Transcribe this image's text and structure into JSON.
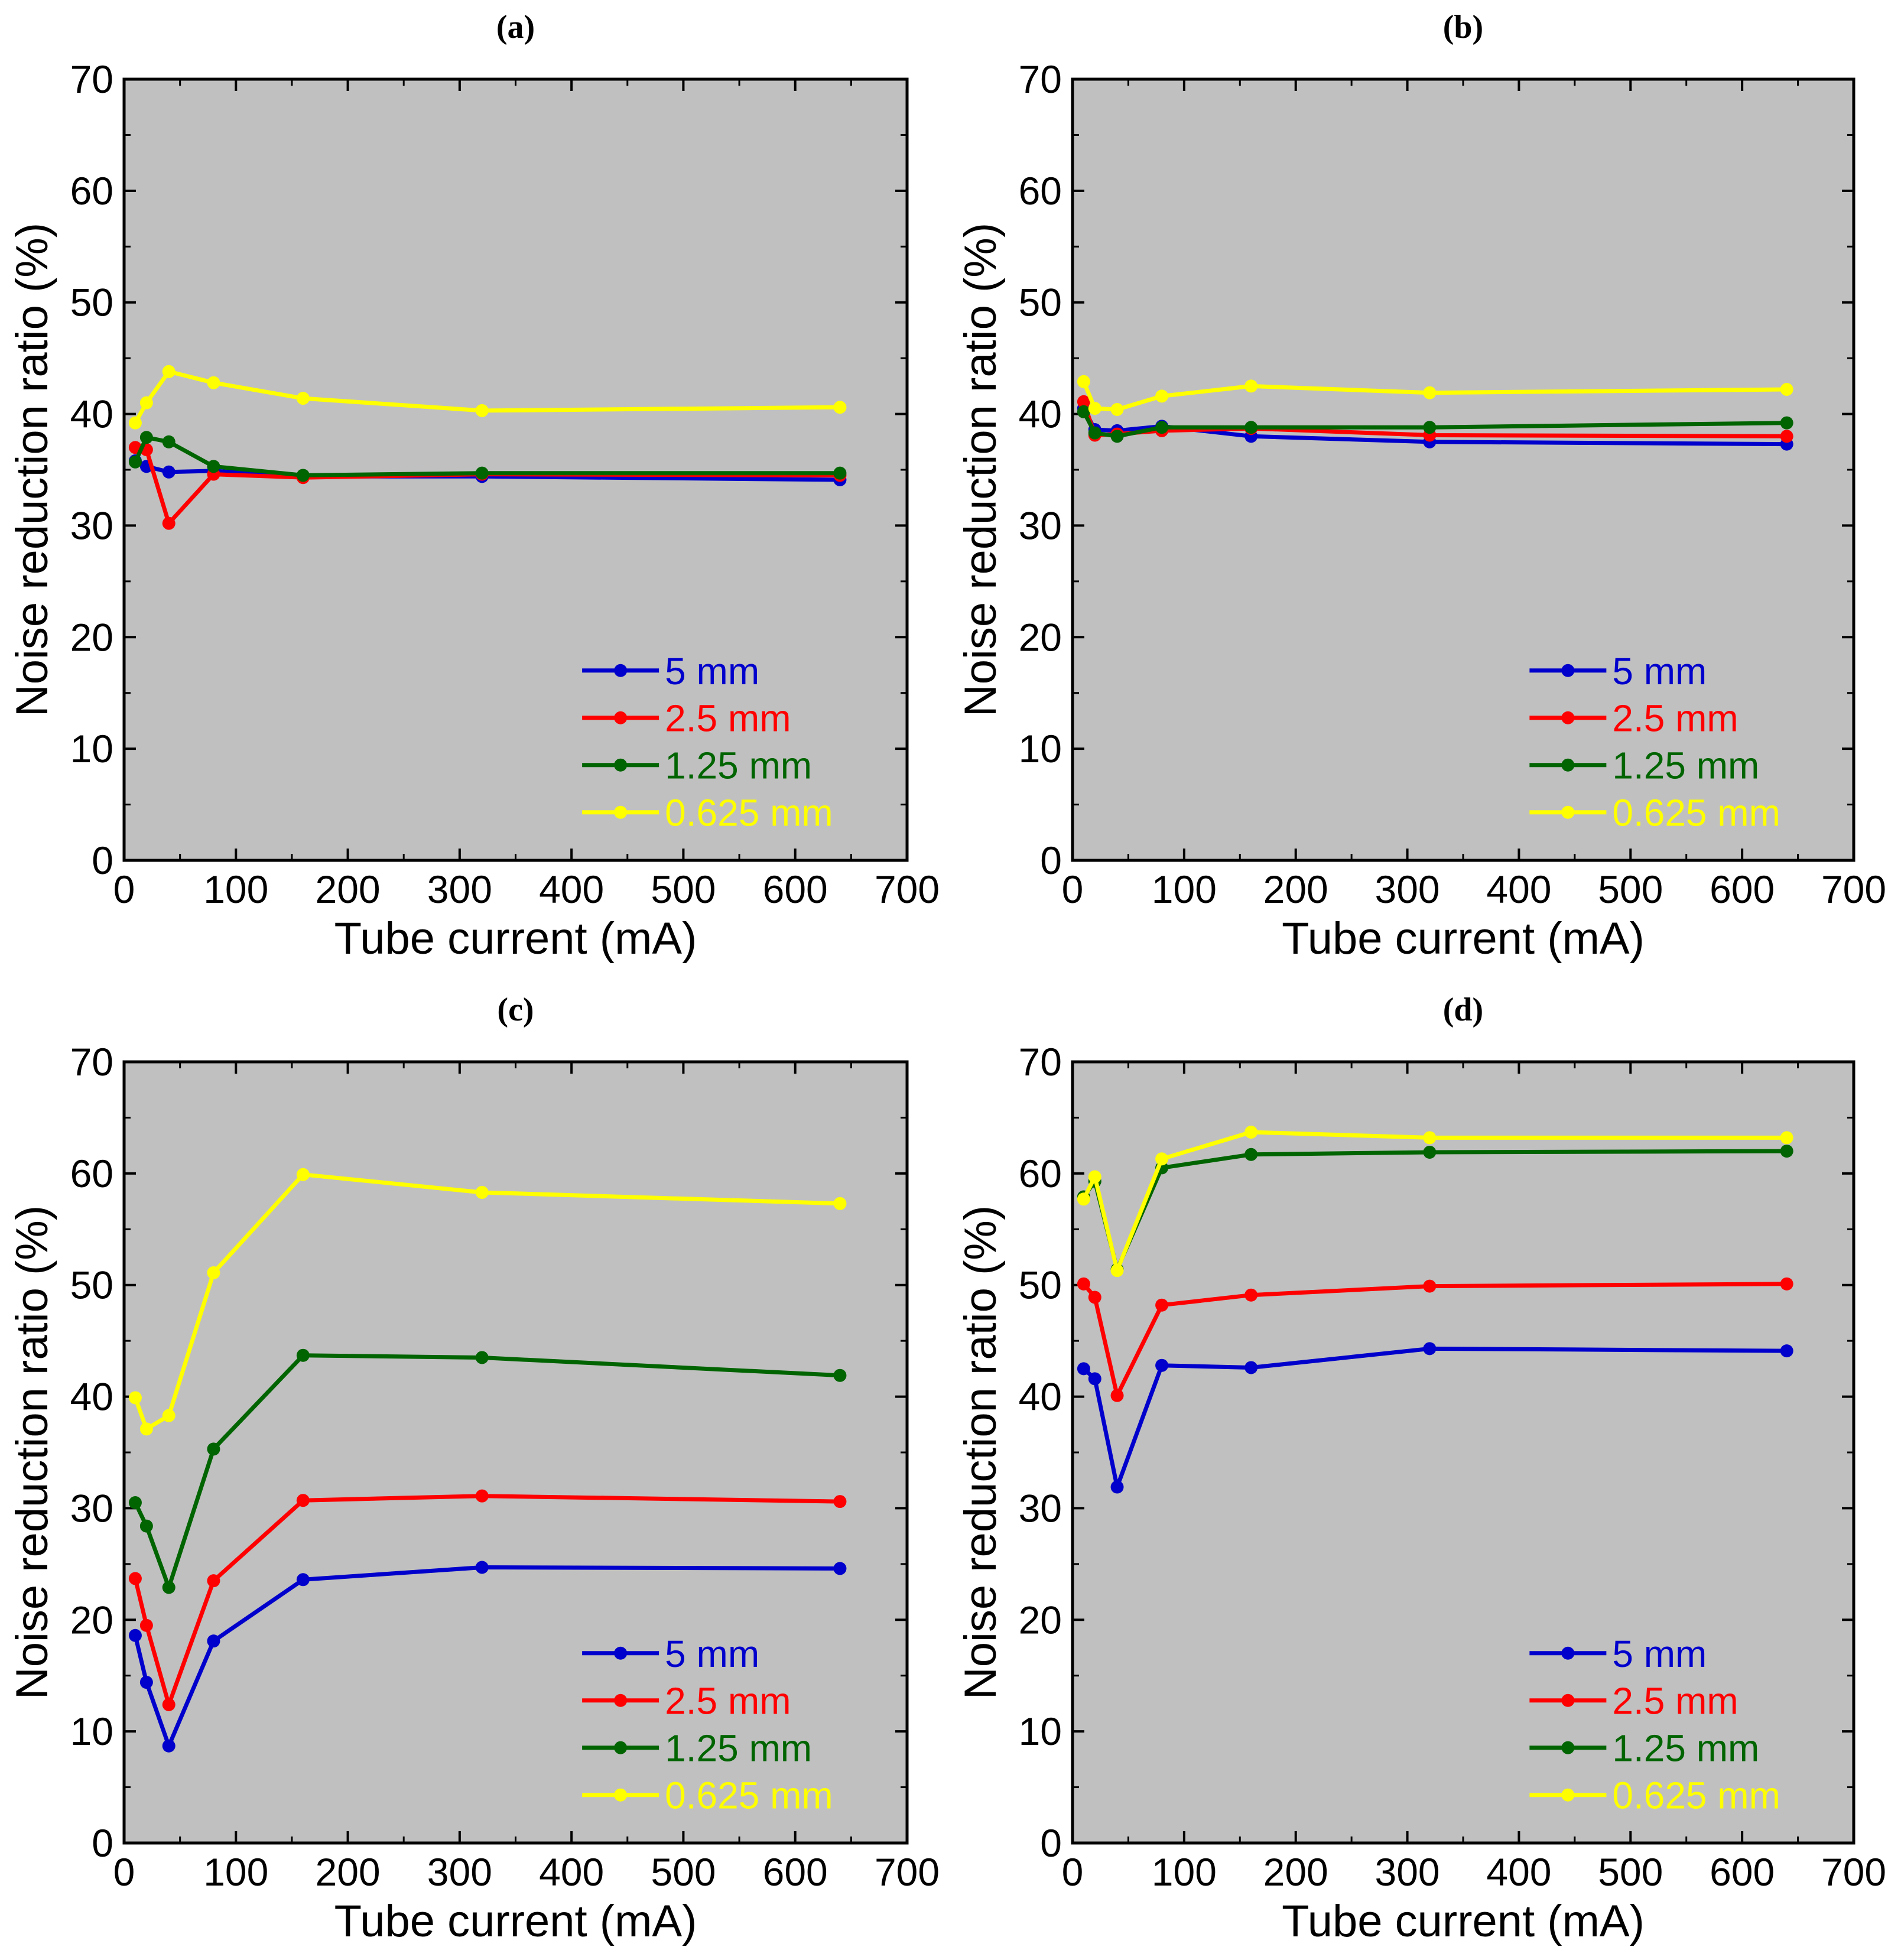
{
  "chart_data": [
    {
      "type": "line",
      "panel_label": "(a)",
      "xlabel": "Tube current (mA)",
      "ylabel": "Noise reduction ratio (%)",
      "xlim": [
        0,
        700
      ],
      "ylim": [
        0,
        70
      ],
      "xticks": [
        "0",
        "100",
        "200",
        "300",
        "400",
        "500",
        "600",
        "700"
      ],
      "yticks": [
        "0",
        "10",
        "20",
        "30",
        "40",
        "50",
        "60",
        "70"
      ],
      "grid": false,
      "legend_position": "bottom-right",
      "x": [
        10,
        20,
        40,
        80,
        160,
        320,
        640
      ],
      "series": [
        {
          "name": "5 mm",
          "color": "#0000cc",
          "values": [
            35.8,
            35.3,
            34.8,
            34.9,
            34.4,
            34.4,
            34.1
          ]
        },
        {
          "name": "2.5 mm",
          "color": "#ff0000",
          "values": [
            37.0,
            36.8,
            30.2,
            34.6,
            34.3,
            34.6,
            34.5
          ]
        },
        {
          "name": "1.25 mm",
          "color": "#006400",
          "values": [
            35.7,
            37.9,
            37.5,
            35.3,
            34.5,
            34.7,
            34.7
          ]
        },
        {
          "name": "0.625 mm",
          "color": "#ffff00",
          "values": [
            39.2,
            41.0,
            43.8,
            42.8,
            41.4,
            40.3,
            40.6
          ]
        }
      ]
    },
    {
      "type": "line",
      "panel_label": "(b)",
      "xlabel": "Tube current (mA)",
      "ylabel": "Noise reduction ratio (%)",
      "xlim": [
        0,
        700
      ],
      "ylim": [
        0,
        70
      ],
      "xticks": [
        "0",
        "100",
        "200",
        "300",
        "400",
        "500",
        "600",
        "700"
      ],
      "yticks": [
        "0",
        "10",
        "20",
        "30",
        "40",
        "50",
        "60",
        "70"
      ],
      "grid": false,
      "legend_position": "bottom-right",
      "x": [
        10,
        20,
        40,
        80,
        160,
        320,
        640
      ],
      "series": [
        {
          "name": "5 mm",
          "color": "#0000cc",
          "values": [
            40.5,
            38.6,
            38.5,
            38.9,
            38.0,
            37.5,
            37.3
          ]
        },
        {
          "name": "2.5 mm",
          "color": "#ff0000",
          "values": [
            41.1,
            38.1,
            38.2,
            38.5,
            38.7,
            38.1,
            38.0
          ]
        },
        {
          "name": "1.25 mm",
          "color": "#006400",
          "values": [
            40.2,
            38.3,
            38.0,
            38.8,
            38.8,
            38.8,
            39.2
          ]
        },
        {
          "name": "0.625 mm",
          "color": "#ffff00",
          "values": [
            42.9,
            40.5,
            40.4,
            41.6,
            42.5,
            41.9,
            42.2
          ]
        }
      ]
    },
    {
      "type": "line",
      "panel_label": "(c)",
      "xlabel": "Tube current (mA)",
      "ylabel": "Noise reduction ratio (%)",
      "xlim": [
        0,
        700
      ],
      "ylim": [
        0,
        70
      ],
      "xticks": [
        "0",
        "100",
        "200",
        "300",
        "400",
        "500",
        "600",
        "700"
      ],
      "yticks": [
        "0",
        "10",
        "20",
        "30",
        "40",
        "50",
        "60",
        "70"
      ],
      "grid": false,
      "legend_position": "bottom-right",
      "x": [
        10,
        20,
        40,
        80,
        160,
        320,
        640
      ],
      "series": [
        {
          "name": "5 mm",
          "color": "#0000cc",
          "values": [
            18.6,
            14.4,
            8.7,
            18.1,
            23.6,
            24.7,
            24.6
          ]
        },
        {
          "name": "2.5 mm",
          "color": "#ff0000",
          "values": [
            23.7,
            19.5,
            12.4,
            23.5,
            30.7,
            31.1,
            30.6
          ]
        },
        {
          "name": "1.25 mm",
          "color": "#006400",
          "values": [
            30.5,
            28.4,
            22.9,
            35.3,
            43.7,
            43.5,
            41.9
          ]
        },
        {
          "name": "0.625 mm",
          "color": "#ffff00",
          "values": [
            39.9,
            37.1,
            38.3,
            51.1,
            59.9,
            58.3,
            57.3
          ]
        }
      ]
    },
    {
      "type": "line",
      "panel_label": "(d)",
      "xlabel": "Tube current (mA)",
      "ylabel": "Noise reduction ratio (%)",
      "xlim": [
        0,
        700
      ],
      "ylim": [
        0,
        70
      ],
      "xticks": [
        "0",
        "100",
        "200",
        "300",
        "400",
        "500",
        "600",
        "700"
      ],
      "yticks": [
        "0",
        "10",
        "20",
        "30",
        "40",
        "50",
        "60",
        "70"
      ],
      "grid": false,
      "legend_position": "bottom-right",
      "x": [
        10,
        20,
        40,
        80,
        160,
        320,
        640
      ],
      "series": [
        {
          "name": "5 mm",
          "color": "#0000cc",
          "values": [
            42.5,
            41.6,
            31.9,
            42.8,
            42.6,
            44.3,
            44.1
          ]
        },
        {
          "name": "2.5 mm",
          "color": "#ff0000",
          "values": [
            50.1,
            48.9,
            40.1,
            48.2,
            49.1,
            49.9,
            50.1
          ]
        },
        {
          "name": "1.25 mm",
          "color": "#006400",
          "values": [
            57.9,
            59.3,
            51.4,
            60.5,
            61.7,
            61.9,
            62.0
          ]
        },
        {
          "name": "0.625 mm",
          "color": "#ffff00",
          "values": [
            57.7,
            59.7,
            51.3,
            61.3,
            63.7,
            63.2,
            63.2
          ]
        }
      ]
    }
  ]
}
